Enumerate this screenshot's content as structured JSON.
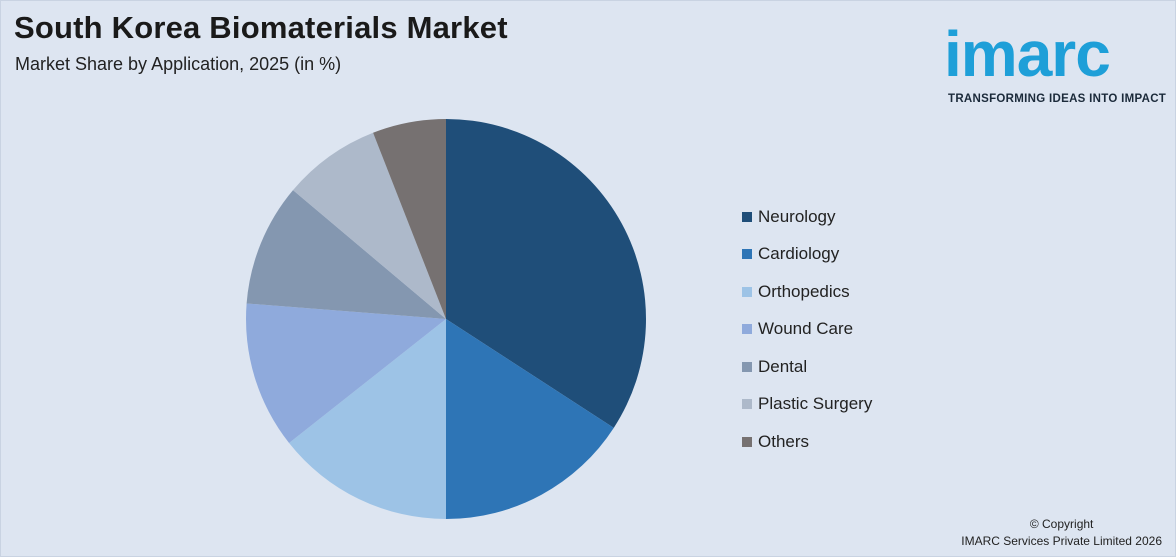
{
  "header": {
    "title": "South Korea Biomaterials Market",
    "subtitle": "Market Share by Application, 2025 (in %)"
  },
  "logo": {
    "word": "imarc",
    "tagline": "TRANSFORMING IDEAS INTO IMPACT",
    "color": "#1e9fd8"
  },
  "chart_data": {
    "type": "pie",
    "start_angle_deg": 0,
    "direction": "clockwise",
    "slices": [
      {
        "label": "Neurology",
        "value": 34.5,
        "color": "#1f4e79"
      },
      {
        "label": "Cardiology",
        "value": 16.0,
        "color": "#2e75b6"
      },
      {
        "label": "Orthopedics",
        "value": 14.5,
        "color": "#9dc3e6"
      },
      {
        "label": "Wound Care",
        "value": 12.0,
        "color": "#8faadc"
      },
      {
        "label": "Dental",
        "value": 10.0,
        "color": "#8497b0"
      },
      {
        "label": "Plastic Surgery",
        "value": 8.0,
        "color": "#adb9ca"
      },
      {
        "label": "Others",
        "value": 6.0,
        "color": "#767171"
      }
    ],
    "legend_position": "right"
  },
  "footer": {
    "copyright_line1": "© Copyright",
    "copyright_line2": "IMARC Services Private Limited 2026"
  }
}
